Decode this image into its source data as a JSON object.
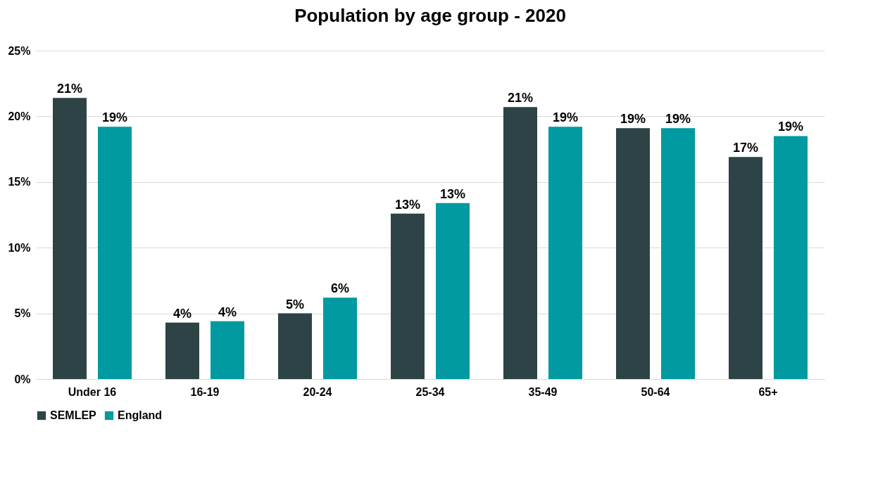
{
  "chart_data": {
    "type": "bar",
    "title": "Population by age group - 2020",
    "categories": [
      "Under 16",
      "16-19",
      "20-24",
      "25-34",
      "35-49",
      "50-64",
      "65+"
    ],
    "series": [
      {
        "name": "SEMLEP",
        "color": "#2d4346",
        "values": [
          21.4,
          4.3,
          5.0,
          12.6,
          20.7,
          19.1,
          16.9
        ],
        "value_labels": [
          "21%",
          "4%",
          "5%",
          "13%",
          "21%",
          "19%",
          "17%"
        ]
      },
      {
        "name": "England",
        "color": "#009aa0",
        "values": [
          19.2,
          4.4,
          6.2,
          13.4,
          19.2,
          19.1,
          18.5
        ],
        "value_labels": [
          "19%",
          "4%",
          "6%",
          "13%",
          "19%",
          "19%",
          "19%"
        ]
      }
    ],
    "ylim": [
      0,
      25
    ],
    "yticks": [
      {
        "value": 0,
        "label": "0%"
      },
      {
        "value": 5,
        "label": "5%"
      },
      {
        "value": 10,
        "label": "10%"
      },
      {
        "value": 15,
        "label": "15%"
      },
      {
        "value": 20,
        "label": "20%"
      },
      {
        "value": 25,
        "label": "25%"
      }
    ],
    "grid": "y",
    "legend": "bottom"
  }
}
